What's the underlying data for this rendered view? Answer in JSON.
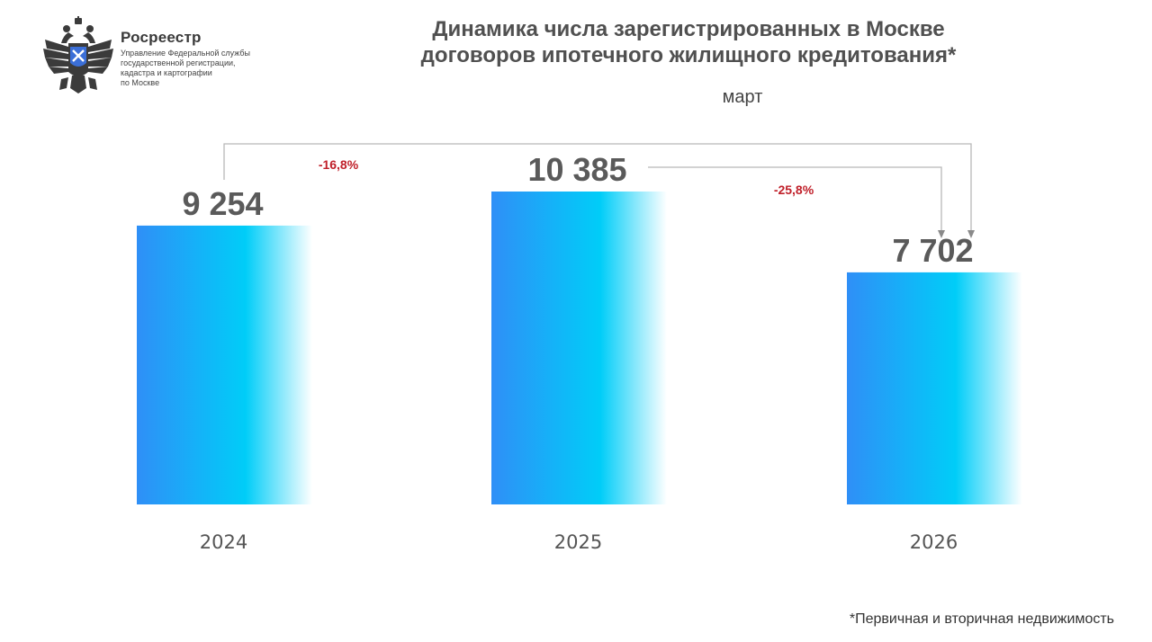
{
  "org": {
    "name": "Росреестр",
    "subtitle_lines": [
      "Управление Федеральной службы",
      "государственной регистрации,",
      "кадастра и картографии",
      "по Москве"
    ],
    "emblem_icon": "double-headed-eagle-emblem-icon"
  },
  "chart_data": {
    "type": "bar",
    "title_lines": [
      "Динамика числа зарегистрированных в Москве",
      "договоров ипотечного жилищного кредитования*"
    ],
    "subtitle": "март",
    "categories": [
      "2024",
      "2025",
      "2026"
    ],
    "values": [
      9254,
      10385,
      7702
    ],
    "value_labels": [
      "9 254",
      "10 385",
      "7 702"
    ],
    "annotations": [
      {
        "from": "2024",
        "to": "2026",
        "label": "-16,8%"
      },
      {
        "from": "2025",
        "to": "2026",
        "label": "-25,8%"
      }
    ],
    "xlabel": "",
    "ylabel": "",
    "ylim": [
      0,
      10385
    ],
    "grid": false,
    "legend": "none",
    "colors": {
      "bar_start": "#2f8ff7",
      "bar_mid": "#00cdf8",
      "value_label": "#5a5a5a",
      "annotation": "#c0202a",
      "connector": "#b8b8b8"
    }
  },
  "footnote": "*Первичная и вторичная недвижимость"
}
